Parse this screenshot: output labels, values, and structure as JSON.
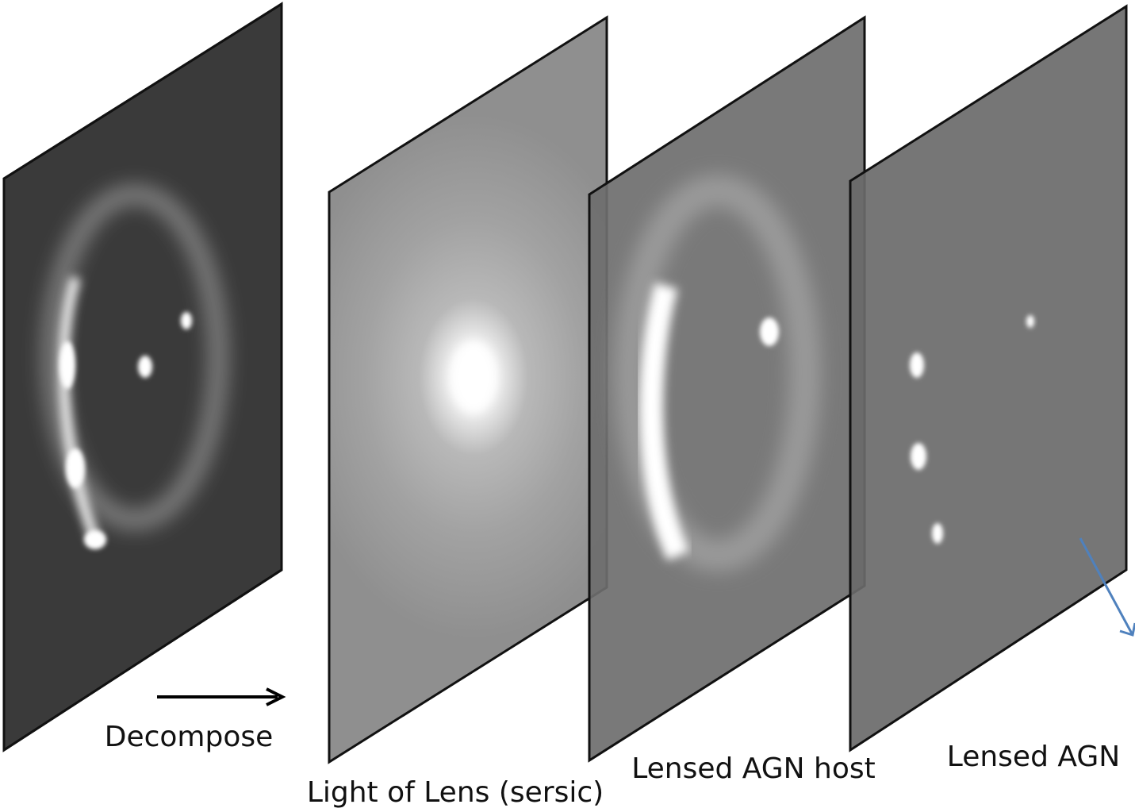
{
  "arrow_label": "Decompose",
  "panels": [
    {
      "label": "Light of Lens (sersic)"
    },
    {
      "label": "Lensed AGN host"
    },
    {
      "label": "Lensed AGN"
    }
  ]
}
